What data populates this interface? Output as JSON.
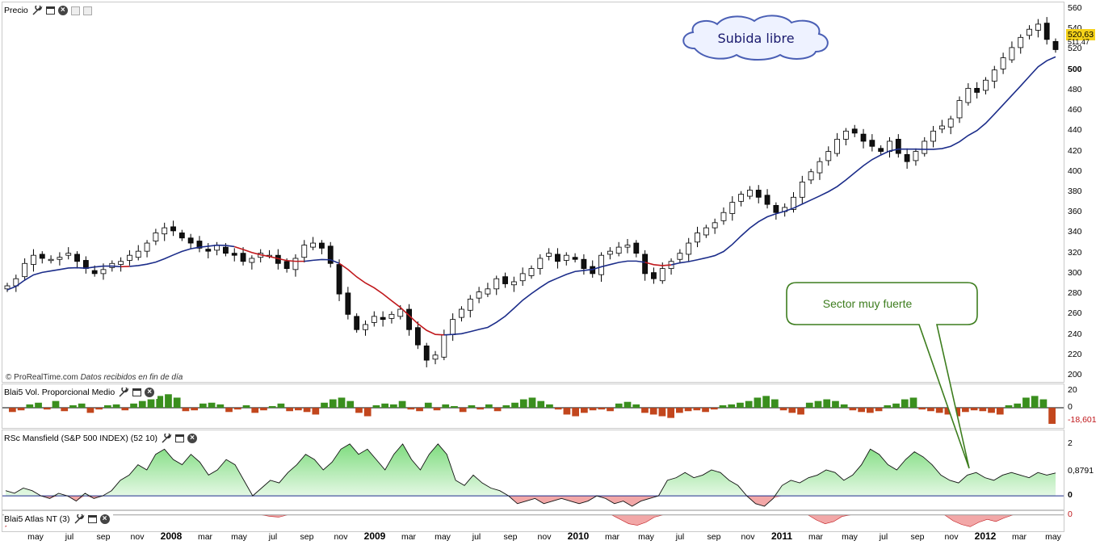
{
  "panels": {
    "price": {
      "title": "Precio"
    },
    "volume": {
      "title": "Blai5 Vol. Proporcional Medio"
    },
    "rsc": {
      "title": "RSc Mansfield (S&P 500 INDEX) (52 10)"
    },
    "atlas": {
      "title": "Blai5 Atlas NT (3)"
    }
  },
  "credit": {
    "site": "© ProRealTime.com",
    "note": "Datos recibidos en fin de día"
  },
  "annotations": {
    "cloud": "Subida libre",
    "callout": "Sector muy fuerte"
  },
  "icons": [
    "wrench-icon",
    "window-icon",
    "close-icon",
    "copy-icon",
    "export-icon"
  ],
  "colors": {
    "ma_red": "#c0181c",
    "ma_blue": "#1c2d8a",
    "vol_up": "#3a8f1e",
    "vol_down": "#c2461d",
    "rsc_pos": "#b8ecb8",
    "rsc_neg": "#f2a7a7",
    "callout_border": "#3d7d1e",
    "cloud_border": "#4a5fb5",
    "price_tag": "#f5d21a"
  },
  "chart_data": [
    {
      "type": "candlestick",
      "title": "Precio",
      "ylim": [
        200,
        560
      ],
      "yticks": [
        200,
        220,
        240,
        260,
        280,
        300,
        320,
        340,
        360,
        380,
        400,
        420,
        440,
        460,
        480,
        500,
        520,
        540,
        560
      ],
      "last_price": "520,63",
      "ma_value": "511,47",
      "x_labels": [
        "may",
        "jul",
        "sep",
        "nov",
        "2008",
        "mar",
        "may",
        "jul",
        "sep",
        "nov",
        "2009",
        "mar",
        "may",
        "jul",
        "sep",
        "nov",
        "2010",
        "mar",
        "may",
        "jul",
        "sep",
        "nov",
        "2011",
        "mar",
        "may",
        "jul",
        "sep",
        "nov",
        "2012",
        "mar",
        "may"
      ],
      "weekly_close": [
        288,
        295,
        310,
        318,
        315,
        314,
        316,
        320,
        312,
        305,
        300,
        304,
        310,
        312,
        318,
        322,
        330,
        340,
        345,
        342,
        335,
        330,
        325,
        322,
        328,
        320,
        318,
        312,
        315,
        320,
        318,
        310,
        305,
        315,
        328,
        330,
        325,
        310,
        280,
        260,
        245,
        250,
        258,
        255,
        260,
        265,
        245,
        230,
        215,
        220,
        240,
        255,
        265,
        275,
        282,
        285,
        295,
        290,
        292,
        300,
        305,
        315,
        320,
        312,
        318,
        314,
        305,
        300,
        318,
        322,
        326,
        328,
        320,
        300,
        295,
        305,
        312,
        320,
        330,
        340,
        345,
        350,
        360,
        370,
        378,
        382,
        375,
        368,
        360,
        365,
        375,
        390,
        400,
        410,
        420,
        432,
        440,
        438,
        430,
        425,
        420,
        430,
        418,
        410,
        420,
        430,
        440,
        445,
        452,
        470,
        482,
        478,
        490,
        500,
        512,
        522,
        532,
        540,
        545,
        530,
        520
      ],
      "ma": [
        {
          "name": "MA rojo (bajista)",
          "color": "red"
        },
        {
          "name": "MA azul (alcista)",
          "color": "blue"
        }
      ]
    },
    {
      "type": "bar",
      "title": "Blai5 Vol. Proporcional Medio",
      "ylim": [
        -20,
        22
      ],
      "yticks": [
        20,
        0
      ],
      "last_value": "-18,601",
      "values": [
        -5,
        -3,
        4,
        6,
        -2,
        8,
        -4,
        3,
        5,
        -6,
        -2,
        3,
        4,
        -3,
        5,
        8,
        10,
        14,
        16,
        12,
        -4,
        -3,
        5,
        6,
        4,
        -5,
        -2,
        3,
        -6,
        -3,
        2,
        5,
        -4,
        -3,
        -5,
        -8,
        6,
        10,
        12,
        8,
        -6,
        -10,
        3,
        5,
        4,
        8,
        -2,
        -4,
        6,
        -3,
        4,
        2,
        -5,
        3,
        -2,
        4,
        -4,
        3,
        6,
        10,
        12,
        8,
        4,
        -2,
        -8,
        -10,
        -6,
        -3,
        -2,
        -4,
        5,
        7,
        4,
        -6,
        -8,
        -10,
        -12,
        -6,
        -4,
        -3,
        -5,
        -2,
        3,
        4,
        6,
        8,
        12,
        14,
        10,
        -3,
        -6,
        -8,
        6,
        8,
        10,
        8,
        4,
        -3,
        -5,
        -6,
        -4,
        3,
        5,
        10,
        12,
        -2,
        -4,
        -6,
        -8,
        -10,
        -5,
        -3,
        -4,
        -6,
        -8,
        3,
        5,
        12,
        14,
        10,
        -19
      ]
    },
    {
      "type": "area",
      "title": "RSc Mansfield (S&P 500 INDEX) (52 10)",
      "ylim": [
        -0.4,
        2.4
      ],
      "yticks": [
        2,
        0
      ],
      "last_value": "0,8791",
      "values": [
        0.2,
        0.1,
        0.3,
        0.2,
        0.0,
        -0.1,
        0.1,
        0.0,
        -0.2,
        0.1,
        -0.1,
        0.0,
        0.2,
        0.6,
        0.8,
        1.2,
        1.0,
        1.6,
        1.8,
        1.4,
        1.2,
        1.6,
        1.3,
        0.8,
        1.0,
        1.4,
        1.2,
        0.6,
        0.0,
        0.3,
        0.6,
        0.5,
        0.9,
        1.2,
        1.6,
        1.4,
        1.0,
        1.3,
        1.8,
        2.0,
        1.6,
        1.8,
        1.4,
        1.0,
        1.6,
        2.0,
        1.4,
        1.0,
        1.6,
        2.0,
        1.6,
        0.6,
        0.4,
        0.8,
        0.5,
        0.3,
        0.2,
        0.0,
        -0.3,
        -0.2,
        -0.1,
        -0.3,
        -0.2,
        -0.1,
        -0.2,
        -0.3,
        -0.2,
        0.0,
        -0.1,
        -0.3,
        -0.2,
        -0.4,
        -0.2,
        -0.1,
        0.0,
        0.6,
        0.7,
        0.9,
        0.7,
        0.8,
        1.0,
        0.9,
        0.6,
        0.4,
        0.0,
        -0.3,
        -0.4,
        -0.1,
        0.4,
        0.6,
        0.5,
        0.7,
        0.8,
        1.0,
        0.9,
        0.6,
        0.8,
        1.2,
        1.8,
        1.6,
        1.2,
        1.0,
        1.4,
        1.7,
        1.5,
        1.2,
        0.8,
        0.6,
        0.5,
        0.8,
        0.9,
        0.7,
        0.6,
        0.8,
        0.9,
        0.8,
        0.7,
        0.9,
        0.8,
        0.88
      ]
    },
    {
      "type": "area",
      "title": "Blai5 Atlas NT (3)",
      "ylim": [
        -2,
        0.3
      ],
      "yticks": [
        0
      ],
      "values": [
        -1.6,
        0,
        0,
        0,
        0,
        0,
        0,
        0,
        0,
        0,
        0,
        0,
        0,
        0,
        0,
        0,
        0,
        0,
        0,
        0,
        0,
        0,
        0,
        0,
        0,
        0,
        0,
        0,
        0,
        0,
        0,
        -0.2,
        -0.3,
        0,
        0,
        0,
        0,
        0,
        0,
        0,
        0,
        0,
        0,
        0,
        0,
        0,
        0,
        0,
        0,
        0,
        0,
        0,
        0,
        0,
        0,
        0,
        0,
        0,
        0,
        0,
        0,
        0,
        0,
        0,
        0,
        0,
        0,
        0,
        0,
        0,
        0,
        0,
        -0.6,
        -1.2,
        -1.4,
        -1.0,
        -0.3,
        0,
        0,
        0,
        0,
        0,
        0,
        0,
        0,
        0,
        0,
        0,
        0,
        0,
        0,
        0,
        0,
        0,
        0,
        -0.7,
        -1.2,
        -0.9,
        -0.2,
        0,
        0,
        0,
        0,
        0,
        0,
        0,
        0,
        0,
        0,
        0,
        0,
        -0.8,
        -1.3,
        -1.6,
        -1.0,
        -0.6,
        -0.9,
        -0.4,
        0,
        0,
        0,
        0,
        0,
        0
      ]
    }
  ]
}
